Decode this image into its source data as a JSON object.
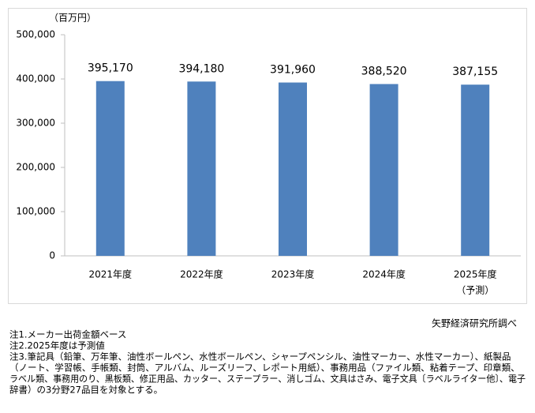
{
  "chart_data": {
    "type": "bar",
    "y_axis_label": "（百万円）",
    "categories": [
      "2021年度",
      "2022年度",
      "2023年度",
      "2024年度",
      "2025年度"
    ],
    "forecast_label": "（予測）",
    "values": [
      395170,
      394180,
      391960,
      388520,
      387155
    ],
    "value_labels": [
      "395,170",
      "394,180",
      "391,960",
      "388,520",
      "387,155"
    ],
    "color": "#4f81bd",
    "ylim": [
      0,
      500000
    ],
    "yticks": [
      0,
      {
        "value": 100000,
        "label": "100,000"
      },
      {
        "value": 200000,
        "label": "200,000"
      },
      {
        "value": 300000,
        "label": "300,000"
      },
      {
        "value": 400000,
        "label": "400,000"
      },
      {
        "value": 500000,
        "label": "500,000"
      }
    ],
    "source": "矢野経済研究所調べ",
    "notes": [
      "注1.メーカー出荷金額ベース",
      "注2.2025年度は予測値",
      "注3.筆記具（鉛筆、万年筆、油性ボールペン、水性ボールペン、シャープペンシル、油性マーカー、水性マーカー）、紙製品",
      "（ノート、学習帳、手帳類、封筒、アルバム、ルーズリーフ、レポート用紙）、事務用品（ファイル類、粘着テープ、印章類、",
      "ラベル類、事務用のり、黒板類、修正用品、カッター、ステープラー、消しゴム、文具はさみ、電子文具〔ラベルライター他〕、電子",
      "辞書）の3分野27品目を対象とする。"
    ]
  }
}
